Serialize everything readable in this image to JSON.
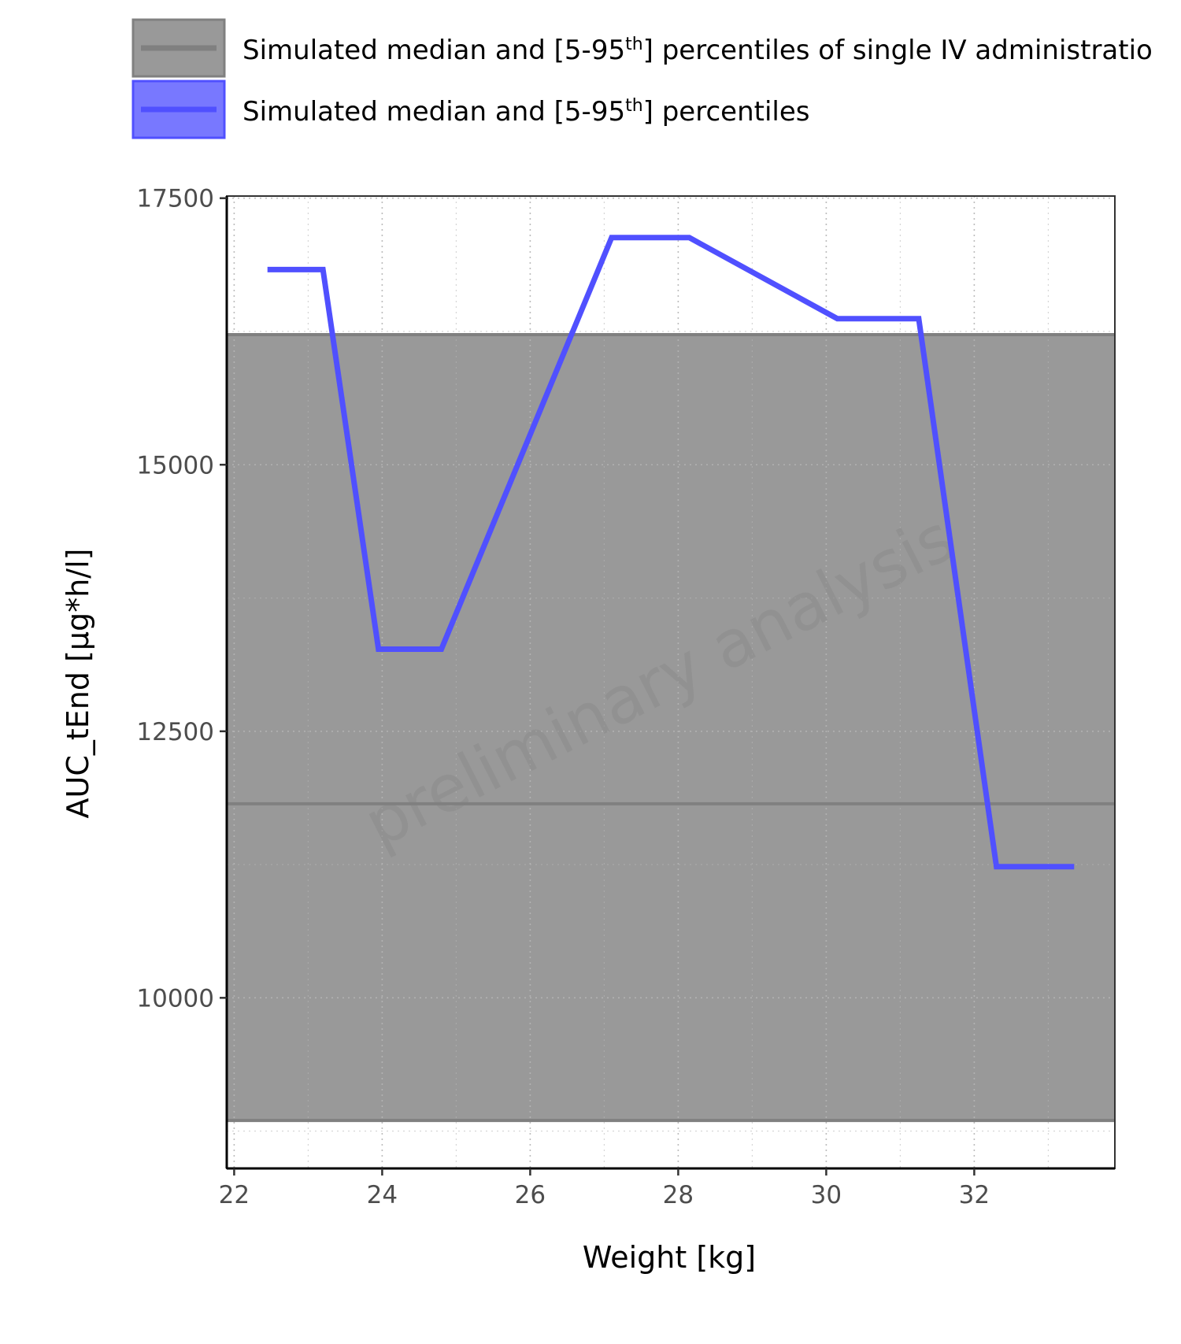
{
  "chart_data": {
    "type": "line",
    "xlabel": "Weight [kg]",
    "ylabel": "AUC_tEnd [µg*h/l]",
    "watermark": "preliminary analysis",
    "xlim": [
      21.9,
      33.9
    ],
    "ylim": [
      8400,
      17520
    ],
    "x_ticks": [
      22,
      24,
      26,
      28,
      30,
      32
    ],
    "y_ticks": [
      10000,
      12500,
      15000,
      17500
    ],
    "grid": true,
    "legend_position": "top",
    "legend": [
      {
        "label_main": "Simulated median and [5-95",
        "label_sup": "th",
        "label_tail": "] percentiles of single IV administratio",
        "color": "#808080",
        "fill": "#999999"
      },
      {
        "label_main": "Simulated median and [5-95",
        "label_sup": "th",
        "label_tail": "] percentiles",
        "color": "#5050ff",
        "fill": "#7878ff"
      }
    ],
    "series": [
      {
        "type": "band",
        "color": "#808080",
        "fill": "#999999",
        "lower": 8850,
        "median": 11820,
        "upper": 16220
      },
      {
        "type": "line",
        "color": "#5050ff",
        "x": [
          22.45,
          23.2,
          23.95,
          24.8,
          27.1,
          28.15,
          30.15,
          31.25,
          32.3,
          33.35
        ],
        "y": [
          16830,
          16830,
          13270,
          13270,
          17130,
          17130,
          16370,
          16370,
          11230,
          11230
        ]
      }
    ]
  }
}
